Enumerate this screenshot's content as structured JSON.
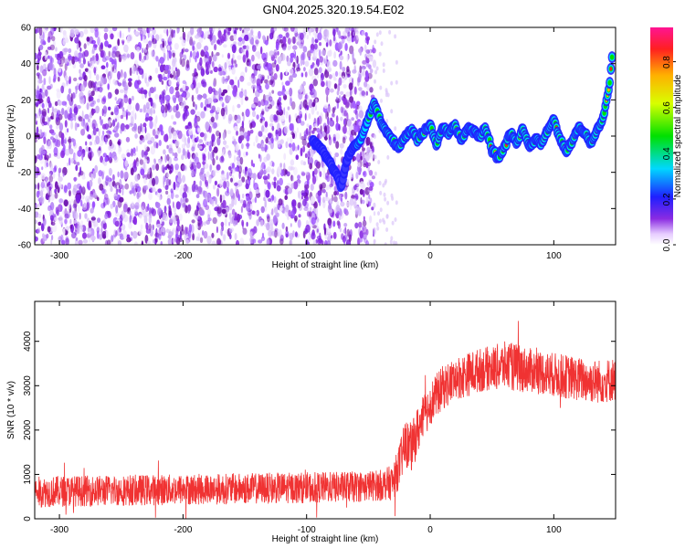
{
  "title": "GN04.2025.320.19.54.E02",
  "colors": {
    "snr_line": "#f03232",
    "spectrogram_dots": "#8a2be2",
    "spectrogram_light": "#c9a6f5",
    "frame": "#000000"
  },
  "chart_data": [
    {
      "type": "heatmap",
      "name": "spectrogram",
      "xlabel": "Height of straight line (km)",
      "ylabel": "Frequency (Hz)",
      "xlim": [
        -320,
        150
      ],
      "ylim": [
        -60,
        60
      ],
      "xticks": [
        -300,
        -200,
        -100,
        0,
        100
      ],
      "yticks": [
        -60,
        -40,
        -20,
        0,
        20,
        40,
        60
      ],
      "noise_region_km": [
        -320,
        -45
      ],
      "ridge_x_km": [
        -95,
        -90,
        -85,
        -80,
        -75,
        -72,
        -68,
        -64,
        -60,
        -55,
        -50,
        -45,
        -40,
        -35,
        -30,
        -25,
        -20,
        -15,
        -10,
        -5,
        0,
        5,
        10,
        15,
        20,
        25,
        30,
        35,
        40,
        45,
        50,
        55,
        60,
        65,
        70,
        75,
        80,
        85,
        90,
        95,
        100,
        105,
        110,
        115,
        120,
        125,
        130,
        135,
        140,
        145,
        148
      ],
      "ridge_freq_hz": [
        -3,
        -6,
        -10,
        -16,
        -22,
        -28,
        -14,
        -8,
        -5,
        0,
        10,
        18,
        8,
        2,
        -3,
        -6,
        0,
        3,
        -2,
        2,
        6,
        -4,
        5,
        2,
        6,
        -2,
        4,
        3,
        0,
        4,
        -8,
        -12,
        -6,
        2,
        -4,
        4,
        -6,
        -2,
        -4,
        3,
        10,
        -2,
        -8,
        -3,
        5,
        2,
        -4,
        3,
        10,
        28,
        50
      ],
      "colorbar": {
        "label": "Normalized spectral amplitude",
        "ticks": [
          "0.0",
          "0.2",
          "0.4",
          "0.6",
          "0.8"
        ],
        "range": [
          0,
          0.95
        ]
      }
    },
    {
      "type": "line",
      "name": "snr",
      "xlabel": "Height of straight line (km)",
      "ylabel": "SNR (10 * v/v)",
      "xlim": [
        -320,
        150
      ],
      "ylim": [
        0,
        4900
      ],
      "xticks": [
        -300,
        -200,
        -100,
        0,
        100
      ],
      "yticks": [
        0,
        1000,
        2000,
        3000,
        4000
      ],
      "series": [
        {
          "name": "SNR",
          "x_km": [
            -320,
            -300,
            -250,
            -200,
            -150,
            -100,
            -60,
            -40,
            -30,
            -25,
            -20,
            -15,
            -10,
            -5,
            0,
            10,
            20,
            30,
            40,
            50,
            60,
            70,
            80,
            90,
            100,
            110,
            120,
            130,
            140,
            150
          ],
          "mean": [
            600,
            620,
            640,
            660,
            680,
            700,
            720,
            760,
            820,
            1200,
            1700,
            1600,
            2000,
            2300,
            2600,
            2950,
            3150,
            3250,
            3350,
            3400,
            3450,
            3400,
            3350,
            3300,
            3250,
            3200,
            3150,
            3100,
            3100,
            3150
          ],
          "spread": [
            700,
            700,
            700,
            700,
            700,
            700,
            700,
            700,
            800,
            1000,
            1100,
            1100,
            1100,
            1000,
            1000,
            1000,
            1000,
            1000,
            1000,
            1000,
            1100,
            1100,
            1000,
            1000,
            1000,
            1000,
            1000,
            1000,
            1000,
            1000
          ]
        }
      ]
    }
  ]
}
